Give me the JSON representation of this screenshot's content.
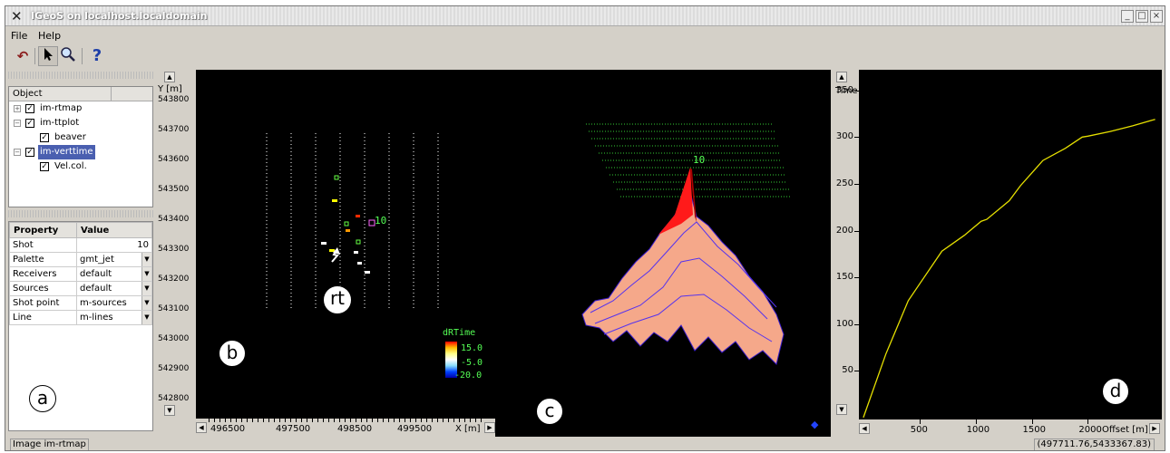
{
  "window": {
    "title": "IGeoS on localhost.localdomain",
    "min_btn": "_",
    "max_btn": "□",
    "close_btn": "×"
  },
  "menu": {
    "file": "File",
    "help": "Help"
  },
  "toolbar": {
    "help_glyph": "?"
  },
  "tree": {
    "header": "Object",
    "items": [
      {
        "label": "im-rtmap",
        "expander": "+"
      },
      {
        "label": "im-ttplot",
        "expander": "−"
      },
      {
        "label": "beaver"
      },
      {
        "label": "im-verttime",
        "expander": "−"
      },
      {
        "label": "Vel.col."
      }
    ]
  },
  "props": {
    "header_property": "Property",
    "header_value": "Value",
    "rows": [
      {
        "name": "Shot",
        "value": "10"
      },
      {
        "name": "Palette",
        "value": "gmt_jet"
      },
      {
        "name": "Receivers",
        "value": "default"
      },
      {
        "name": "Sources",
        "value": "default"
      },
      {
        "name": "Shot point",
        "value": "m-sources"
      },
      {
        "name": "Line",
        "value": "m-lines"
      }
    ]
  },
  "annotations": {
    "a": "a",
    "b": "b",
    "c": "c",
    "d": "d",
    "rt": "rt"
  },
  "map_plot": {
    "ylabel": "Y [m]",
    "xlabel": "X [m]",
    "yticks": [
      "543800",
      "543700",
      "543600",
      "543500",
      "543400",
      "543300",
      "543200",
      "543100",
      "543000",
      "542900",
      "542800"
    ],
    "xticks": [
      "496500",
      "497500",
      "498500",
      "499500"
    ],
    "shot_label": "10",
    "colorbar": {
      "title": "dRTime",
      "max": "15.0",
      "mid": "-5.0",
      "min": "-20.0"
    }
  },
  "surface_plot": {
    "peak_label": "10"
  },
  "chart_data": {
    "type": "line",
    "title": "",
    "xlabel": "Offset [m]",
    "ylabel": "Time",
    "xlim": [
      -40,
      2660
    ],
    "ylim": [
      -2,
      372
    ],
    "xticks": [
      500,
      1000,
      1500,
      2000
    ],
    "yticks": [
      50,
      100,
      150,
      200,
      250,
      300,
      350
    ],
    "series": [
      {
        "color": "#e6e000",
        "x": [
          0,
          200,
          400,
          700,
          900,
          1050,
          1100,
          1300,
          1400,
          1600,
          1800,
          1950,
          2000,
          2200,
          2400,
          2600
        ],
        "y": [
          0,
          68,
          125,
          178,
          195,
          210,
          212,
          232,
          248,
          275,
          288,
          300,
          301,
          306,
          312,
          319
        ]
      }
    ]
  },
  "status": {
    "left": "Image im-rtmap",
    "right": "(497711.76,5433367.83)"
  }
}
